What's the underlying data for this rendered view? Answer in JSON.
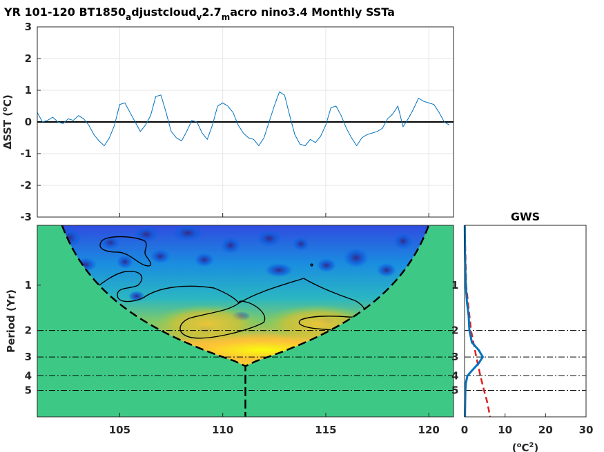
{
  "figure": {
    "title_parts": [
      "YR 101-120 BT1850",
      "a",
      "djustcloud",
      "v",
      "2.7",
      "m",
      "acro nino3.4 Monthly SSTa"
    ]
  },
  "chart_data": [
    {
      "type": "line",
      "ylabel_parts": [
        "ΔSST (",
        "o",
        "C)"
      ],
      "xlim": [
        101,
        121.2
      ],
      "ylim": [
        -3,
        3
      ],
      "yticks": [
        -3,
        -2,
        -1,
        0,
        1,
        2,
        3
      ],
      "xgrid": [
        105,
        110,
        115,
        120
      ],
      "grid": true,
      "zero_line": true,
      "series": [
        {
          "color": "#0072bd",
          "x": [
            101.0,
            101.25,
            101.5,
            101.75,
            102.0,
            102.25,
            102.5,
            102.75,
            103.0,
            103.25,
            103.5,
            103.75,
            104.0,
            104.25,
            104.5,
            104.75,
            105.0,
            105.25,
            105.5,
            105.75,
            106.0,
            106.25,
            106.5,
            106.75,
            107.0,
            107.25,
            107.5,
            107.75,
            108.0,
            108.25,
            108.5,
            108.75,
            109.0,
            109.25,
            109.5,
            109.75,
            110.0,
            110.25,
            110.5,
            110.75,
            111.0,
            111.25,
            111.5,
            111.75,
            112.0,
            112.25,
            112.5,
            112.75,
            113.0,
            113.25,
            113.5,
            113.75,
            114.0,
            114.25,
            114.5,
            114.75,
            115.0,
            115.25,
            115.5,
            115.75,
            116.0,
            116.25,
            116.5,
            116.75,
            117.0,
            117.25,
            117.5,
            117.75,
            118.0,
            118.25,
            118.5,
            118.75,
            119.0,
            119.25,
            119.5,
            119.75,
            120.0,
            120.25,
            120.5,
            120.75,
            121.0
          ],
          "values": [
            0.3,
            0.0,
            0.05,
            0.15,
            0.0,
            -0.05,
            0.1,
            0.05,
            0.2,
            0.1,
            -0.1,
            -0.4,
            -0.6,
            -0.75,
            -0.5,
            -0.1,
            0.55,
            0.6,
            0.3,
            0.0,
            -0.3,
            -0.1,
            0.2,
            0.8,
            0.85,
            0.3,
            -0.3,
            -0.5,
            -0.6,
            -0.3,
            0.05,
            0.0,
            -0.35,
            -0.55,
            -0.1,
            0.5,
            0.6,
            0.5,
            0.3,
            -0.1,
            -0.35,
            -0.5,
            -0.55,
            -0.75,
            -0.5,
            0.0,
            0.5,
            0.95,
            0.85,
            0.2,
            -0.4,
            -0.7,
            -0.75,
            -0.55,
            -0.65,
            -0.45,
            -0.1,
            0.45,
            0.5,
            0.2,
            -0.2,
            -0.5,
            -0.75,
            -0.5,
            -0.4,
            -0.35,
            -0.3,
            -0.2,
            0.1,
            0.25,
            0.5,
            -0.15,
            0.1,
            0.4,
            0.75,
            0.65,
            0.6,
            0.55,
            0.3,
            0.0,
            -0.1
          ]
        }
      ]
    },
    {
      "type": "heatmap",
      "ylabel": "Period (Yr)",
      "xlim": [
        101,
        121.2
      ],
      "xticks": [
        105,
        110,
        115,
        120
      ],
      "ytick_labels": [
        "1",
        "2",
        "3",
        "4",
        "5"
      ],
      "yticks": [
        1,
        2,
        3,
        4,
        5
      ],
      "period_range": [
        0.4,
        7.5
      ],
      "cone_of_influence": true,
      "dash_dot_periods": [
        2,
        3,
        4,
        5
      ],
      "colormap": "parula",
      "outside_cone_color": "#3dc985",
      "description_hotspots": [
        {
          "x": 110.5,
          "period": 3.0,
          "power": "max"
        },
        {
          "x": 108.5,
          "period": 2.3,
          "power": "high"
        },
        {
          "x": 114.0,
          "period": 2.4,
          "power": "high"
        }
      ]
    },
    {
      "type": "line",
      "title": "GWS",
      "xlabel_parts": [
        "(",
        "o",
        "C",
        "2",
        ")"
      ],
      "xlim": [
        0,
        30
      ],
      "xticks": [
        0,
        10,
        20,
        30
      ],
      "ytick_labels": [
        "1",
        "2",
        "3",
        "4",
        "5"
      ],
      "yticks": [
        1,
        2,
        3,
        4,
        5
      ],
      "dash_dot_periods": [
        2,
        3,
        4,
        5
      ],
      "series": [
        {
          "name": "global wavelet spectrum",
          "color": "#0072bd",
          "periods": [
            0.4,
            0.6,
            0.8,
            1.0,
            1.3,
            1.6,
            2.0,
            2.4,
            2.7,
            3.0,
            3.3,
            3.7,
            4.0,
            4.5,
            5.0,
            6.0,
            7.5
          ],
          "values": [
            0.05,
            0.1,
            0.2,
            0.3,
            0.6,
            1.0,
            1.2,
            1.8,
            3.5,
            4.5,
            3.5,
            1.8,
            0.7,
            0.3,
            0.2,
            0.15,
            0.1
          ]
        },
        {
          "name": "significance",
          "color": "#e02020",
          "dashed": true,
          "periods": [
            0.4,
            1.0,
            2.0,
            3.0,
            4.0,
            5.0,
            6.0,
            7.5
          ],
          "values": [
            0.05,
            0.4,
            1.6,
            2.9,
            3.9,
            4.8,
            5.6,
            6.3
          ]
        }
      ]
    }
  ]
}
